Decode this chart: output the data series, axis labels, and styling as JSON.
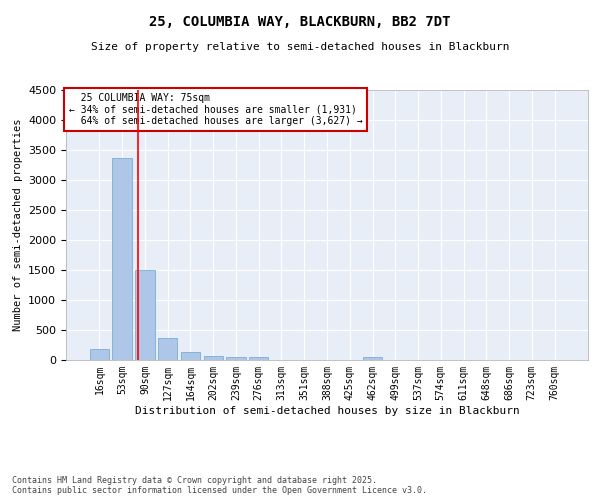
{
  "title": "25, COLUMBIA WAY, BLACKBURN, BB2 7DT",
  "subtitle": "Size of property relative to semi-detached houses in Blackburn",
  "xlabel": "Distribution of semi-detached houses by size in Blackburn",
  "ylabel": "Number of semi-detached properties",
  "footnote": "Contains HM Land Registry data © Crown copyright and database right 2025.\nContains public sector information licensed under the Open Government Licence v3.0.",
  "categories": [
    "16sqm",
    "53sqm",
    "90sqm",
    "127sqm",
    "164sqm",
    "202sqm",
    "239sqm",
    "276sqm",
    "313sqm",
    "351sqm",
    "388sqm",
    "425sqm",
    "462sqm",
    "499sqm",
    "537sqm",
    "574sqm",
    "611sqm",
    "648sqm",
    "686sqm",
    "723sqm",
    "760sqm"
  ],
  "values": [
    190,
    3370,
    1500,
    370,
    140,
    75,
    55,
    50,
    0,
    0,
    0,
    0,
    50,
    0,
    0,
    0,
    0,
    0,
    0,
    0,
    0
  ],
  "bar_color": "#aec6e8",
  "bar_edgecolor": "#7bafd4",
  "highlight_sqm": "75sqm",
  "property_name": "25 COLUMBIA WAY",
  "pct_smaller": 34,
  "pct_larger": 64,
  "count_smaller": 1931,
  "count_larger": 3627,
  "redline_x": 1.68,
  "ylim": [
    0,
    4500
  ],
  "yticks": [
    0,
    500,
    1000,
    1500,
    2000,
    2500,
    3000,
    3500,
    4000,
    4500
  ],
  "bg_color": "#e8eef8",
  "grid_color": "#ffffff",
  "annotation_box_color": "#cc0000"
}
